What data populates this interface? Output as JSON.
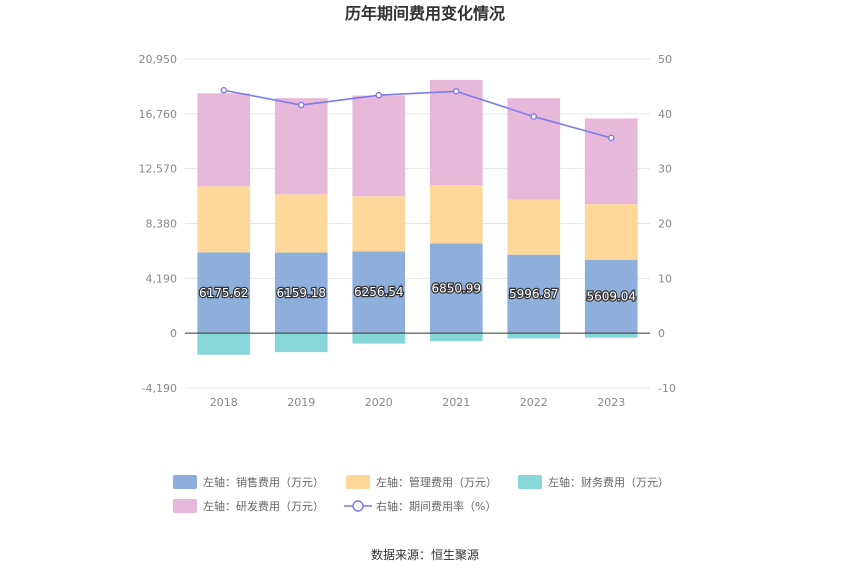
{
  "chart_data": {
    "type": "bar",
    "title": "历年期间费用变化情况",
    "categories": [
      "2018",
      "2019",
      "2020",
      "2021",
      "2022",
      "2023"
    ],
    "left_axis": {
      "min": -4190,
      "max": 20950,
      "ticks": [
        -4190,
        0,
        4190,
        8380,
        12570,
        16760,
        20950
      ],
      "tick_labels": [
        "-4,190",
        "0",
        "4,190",
        "8,380",
        "12,570",
        "16,760",
        "20,950"
      ]
    },
    "right_axis": {
      "min": -10,
      "max": 50,
      "ticks": [
        -10,
        0,
        10,
        20,
        30,
        40,
        50
      ],
      "tick_labels": [
        "-10",
        "0",
        "10",
        "20",
        "30",
        "40",
        "50"
      ]
    },
    "series": [
      {
        "name": "左轴：销售费用（万元）",
        "type": "bar",
        "axis": "left",
        "color": "#8eaedb",
        "values": [
          6175.62,
          6159.18,
          6256.54,
          6850.99,
          5996.87,
          5609.04
        ],
        "labels": [
          "6175.62",
          "6159.18",
          "6256.54",
          "6850.99",
          "5996.87",
          "5609.04"
        ]
      },
      {
        "name": "左轴：管理费用（万元）",
        "type": "bar",
        "axis": "left",
        "color": "#fdd89a",
        "values": [
          5050,
          4450,
          4200,
          4450,
          4200,
          4250
        ]
      },
      {
        "name": "左轴：财务费用（万元）",
        "type": "bar",
        "axis": "left",
        "color": "#87d7d9",
        "values": [
          -1650,
          -1450,
          -800,
          -600,
          -400,
          -350
        ]
      },
      {
        "name": "左轴：研发费用（万元）",
        "type": "bar",
        "axis": "left",
        "color": "#e8b8da",
        "values": [
          7100,
          7350,
          7700,
          8050,
          7750,
          6550
        ]
      },
      {
        "name": "右轴：期间费用率（%）",
        "type": "line",
        "axis": "right",
        "color": "#7b7bea",
        "values": [
          44.3,
          41.6,
          43.4,
          44.1,
          39.5,
          35.6
        ]
      }
    ],
    "legend_placement": "bottom",
    "grid": true
  },
  "source_text": "数据来源：恒生聚源"
}
